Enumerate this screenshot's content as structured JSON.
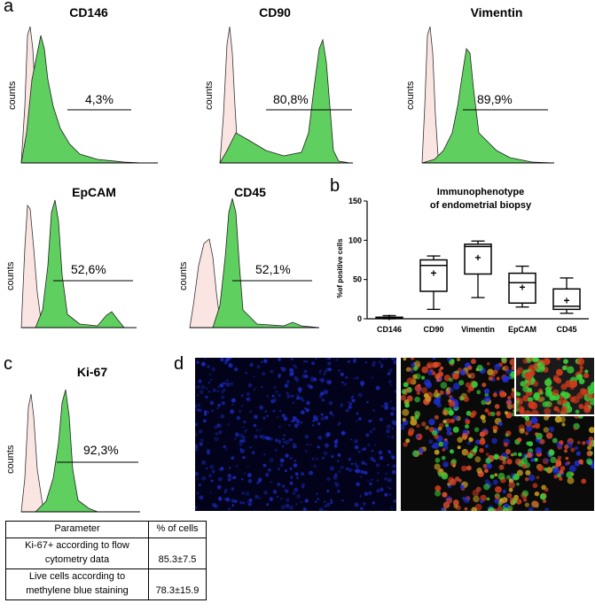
{
  "panel_labels": {
    "a": "a",
    "b": "b",
    "c": "c",
    "d": "d"
  },
  "histograms": [
    {
      "title": "CD146",
      "ylabel": "counts",
      "value": "4,3%"
    },
    {
      "title": "CD90",
      "ylabel": "counts",
      "value": "80,8%"
    },
    {
      "title": "Vimentin",
      "ylabel": "counts",
      "value": "89,9%"
    },
    {
      "title": "EpCAM",
      "ylabel": "counts",
      "value": "52,6%"
    },
    {
      "title": "CD45",
      "ylabel": "counts",
      "value": "52,1%"
    },
    {
      "title": "Ki-67",
      "ylabel": "counts",
      "value": "92,3%"
    }
  ],
  "chart_data": {
    "type": "box",
    "title": "Immunophenotype of endometrial biopsy",
    "title_lines": [
      "Immunophenotype",
      "of endometrial biopsy"
    ],
    "ylabel": "%of positive cells",
    "xlabel": "",
    "ylim": [
      0,
      150
    ],
    "yticks": [
      0,
      50,
      100,
      150
    ],
    "grid": false,
    "categories": [
      "CD146",
      "CD90",
      "Vimentin",
      "EpCAM",
      "CD45"
    ],
    "boxes": [
      {
        "name": "CD146",
        "min": 0,
        "q1": 0.5,
        "median": 1,
        "q3": 2,
        "max": 4,
        "mean": 1.5
      },
      {
        "name": "CD90",
        "min": 12,
        "q1": 35,
        "median": 68,
        "q3": 75,
        "max": 80,
        "mean": 58
      },
      {
        "name": "Vimentin",
        "min": 27,
        "q1": 57,
        "median": 92,
        "q3": 95,
        "max": 99,
        "mean": 78
      },
      {
        "name": "EpCAM",
        "min": 15,
        "q1": 20,
        "median": 46,
        "q3": 58,
        "max": 67,
        "mean": 40
      },
      {
        "name": "CD45",
        "min": 7,
        "q1": 12,
        "median": 16,
        "q3": 38,
        "max": 52,
        "mean": 23
      }
    ]
  },
  "table": {
    "headers": [
      "Parameter",
      "% of cells"
    ],
    "rows": [
      {
        "param_lines": [
          "Ki-67+ according to flow",
          "cytometry data"
        ],
        "value": "85.3±7.5"
      },
      {
        "param_lines": [
          "Live cells according to",
          "methylene blue staining"
        ],
        "value": "78.3±15.9"
      }
    ]
  },
  "colors": {
    "positive_fill": "#5fcf5f",
    "control_fill": "#fbe5e2",
    "blue_stain": "#1f2fd6",
    "green_stain": "#39d23a",
    "red_stain": "#d23a1c"
  }
}
